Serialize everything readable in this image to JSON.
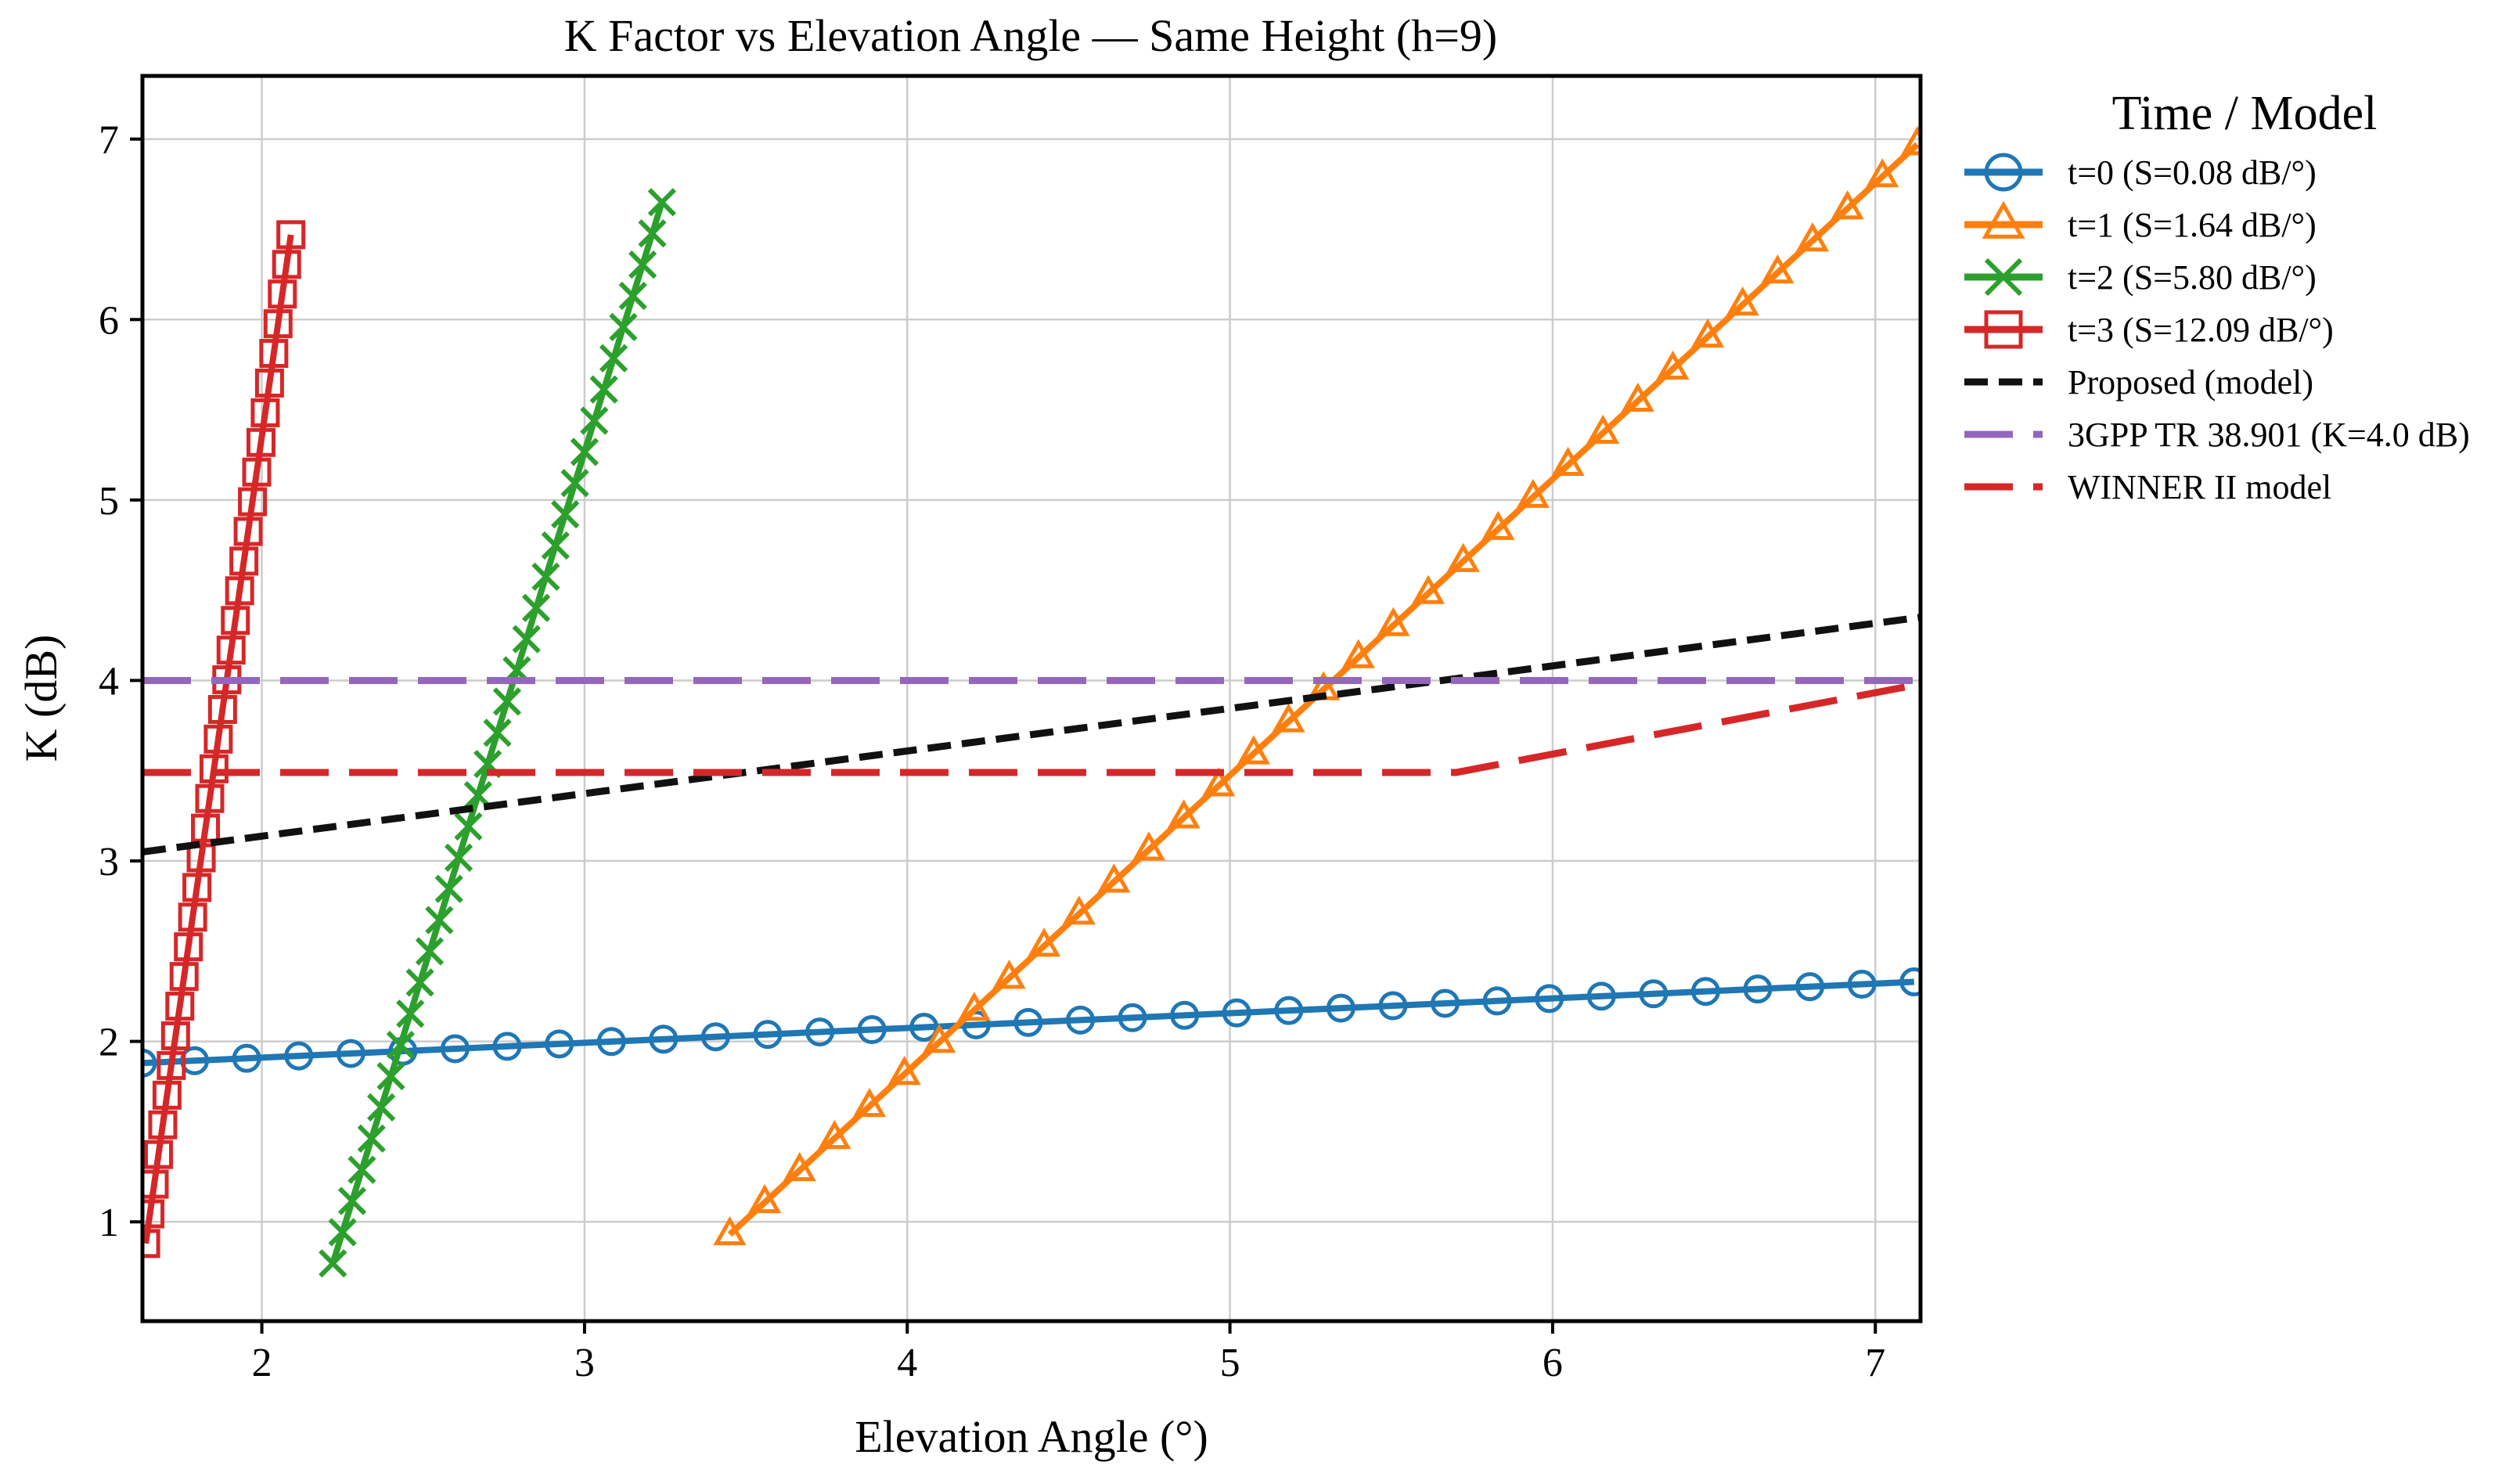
{
  "chart_data": {
    "type": "line",
    "title": "K Factor vs Elevation Angle — Same Height (h=9)",
    "xlabel": "Elevation Angle (°)",
    "ylabel": "K (dB)",
    "xlim": [
      1.63,
      7.14
    ],
    "ylim": [
      0.45,
      7.35
    ],
    "xticks": [
      2,
      3,
      4,
      5,
      6,
      7
    ],
    "yticks": [
      1,
      2,
      3,
      4,
      5,
      6,
      7
    ],
    "grid": true,
    "legend_title": "Time / Model",
    "legend_position": "outside-right",
    "series": [
      {
        "name": "t=0 (S=0.08 dB/°)",
        "color": "#1f77b4",
        "marker": "circle",
        "line": "solid",
        "x_start": 1.63,
        "x_end": 7.12,
        "y_start": 1.88,
        "y_end": 2.33,
        "n_markers": 35
      },
      {
        "name": "t=1 (S=1.64 dB/°)",
        "color": "#ff7f0e",
        "marker": "triangle",
        "line": "solid",
        "x_start": 3.45,
        "x_end": 7.13,
        "y_start": 0.93,
        "y_end": 6.97,
        "n_markers": 35
      },
      {
        "name": "t=2 (S=5.80 dB/°)",
        "color": "#2ca02c",
        "marker": "x",
        "line": "solid",
        "x_start": 2.22,
        "x_end": 3.24,
        "y_start": 0.77,
        "y_end": 6.65,
        "n_markers": 35
      },
      {
        "name": "t=3 (S=12.09 dB/°)",
        "color": "#d62728",
        "marker": "square",
        "line": "solid",
        "x_start": 1.64,
        "x_end": 2.09,
        "y_start": 0.88,
        "y_end": 6.47,
        "n_markers": 35
      },
      {
        "name": "Proposed (model)",
        "color": "#111111",
        "marker": "none",
        "line": "dashed",
        "x": [
          1.63,
          7.14
        ],
        "y": [
          3.05,
          4.35
        ]
      },
      {
        "name": "3GPP TR 38.901 (K=4.0 dB)",
        "color": "#9467bd",
        "marker": "none",
        "line": "long-dashed",
        "x": [
          1.63,
          7.14
        ],
        "y": [
          4.0,
          4.0
        ]
      },
      {
        "name": "WINNER II model",
        "color": "#d62728",
        "marker": "none",
        "line": "long-dashed",
        "x": [
          1.63,
          5.7,
          7.14
        ],
        "y": [
          3.49,
          3.49,
          3.98
        ]
      }
    ]
  }
}
